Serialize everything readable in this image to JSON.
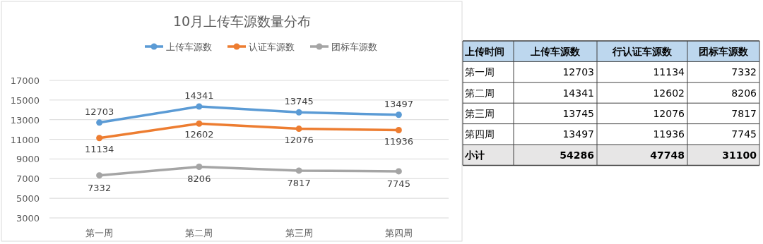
{
  "chart_data": [
    {
      "type": "line",
      "title": "10月上传车源数量分布",
      "categories": [
        "第一周",
        "第二周",
        "第三周",
        "第四周"
      ],
      "series": [
        {
          "name": "上传车源数",
          "color": "#5b9bd5",
          "values": [
            12703,
            14341,
            13745,
            13497
          ]
        },
        {
          "name": "认证车源数",
          "color": "#ed7d31",
          "values": [
            11134,
            12602,
            12076,
            11936
          ]
        },
        {
          "name": "团标车源数",
          "color": "#a5a5a5",
          "values": [
            7332,
            8206,
            7817,
            7745
          ]
        }
      ],
      "ylim": [
        3000,
        17000
      ],
      "yticks": [
        3000,
        5000,
        7000,
        9000,
        11000,
        13000,
        15000,
        17000
      ],
      "grid": "y",
      "legend": "top",
      "marker": "circle",
      "line_style": "solid",
      "data_labels": true
    },
    {
      "type": "other",
      "legend_title": "上传时间",
      "categories": [
        "第一周",
        "第二周",
        "第三周",
        "第四周",
        "小计"
      ],
      "series": [
        {
          "name": "上传车源数",
          "values": [
            12703,
            14341,
            13745,
            13497,
            54286
          ]
        },
        {
          "name": "行认证车源数",
          "values": [
            11134,
            12602,
            12076,
            11936,
            47748
          ]
        },
        {
          "name": "团标车源数",
          "values": [
            7332,
            8206,
            7817,
            7745,
            31100
          ]
        }
      ],
      "data_labels": true
    }
  ]
}
